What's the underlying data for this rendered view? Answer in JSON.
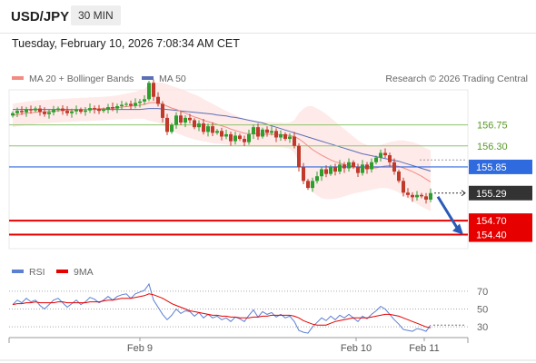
{
  "header": {
    "symbol": "USD/JPY",
    "timeframe": "30 MIN"
  },
  "datetime": "Tuesday, February 10, 2026 7:08:34 AM CET",
  "legend": {
    "ma20": "MA 20 + Bollinger Bands",
    "ma50": "MA 50",
    "rsi": "RSI",
    "rsi_ma": "9MA",
    "copyright": "Research © 2026 Trading Central"
  },
  "colors": {
    "up": "#2e9e2e",
    "down": "#c0392b",
    "ma20": "#f28b82",
    "ma50": "#5b6fb5",
    "band": "#fde3e1",
    "pivot": "#2f6bde",
    "support": "#e60000",
    "resistance": "#8cc66b",
    "current": "#333333",
    "rsi": "#5b7fd1",
    "rsi_ma": "#e60000"
  },
  "chart_data": [
    {
      "type": "candlestick",
      "title": "USD/JPY 30 MIN",
      "x_labels": [
        "Feb 9",
        "Feb 10",
        "Feb 11"
      ],
      "ylim": [
        154.1,
        157.5
      ],
      "levels": [
        {
          "label": "156.75",
          "value": 156.75,
          "kind": "resistance"
        },
        {
          "label": "156.30",
          "value": 156.3,
          "kind": "resistance"
        },
        {
          "label": "155.85",
          "value": 155.85,
          "kind": "pivot"
        },
        {
          "label": "155.29",
          "value": 155.29,
          "kind": "current"
        },
        {
          "label": "154.70",
          "value": 154.7,
          "kind": "support"
        },
        {
          "label": "154.40",
          "value": 154.4,
          "kind": "support"
        }
      ],
      "arrow": {
        "from": 155.29,
        "to": 154.4,
        "direction": "down"
      },
      "close": [
        157.0,
        157.05,
        157.02,
        157.08,
        157.06,
        157.1,
        157.03,
        156.98,
        157.02,
        157.07,
        157.1,
        157.05,
        157.0,
        157.04,
        157.08,
        157.03,
        157.06,
        157.11,
        157.09,
        157.05,
        157.08,
        157.13,
        157.1,
        157.15,
        157.18,
        157.2,
        157.16,
        157.22,
        157.25,
        157.3,
        157.65,
        157.35,
        157.2,
        156.9,
        156.6,
        156.75,
        156.95,
        156.8,
        156.9,
        156.85,
        156.7,
        156.78,
        156.6,
        156.72,
        156.58,
        156.62,
        156.5,
        156.55,
        156.4,
        156.52,
        156.45,
        156.38,
        156.55,
        156.7,
        156.5,
        156.65,
        156.58,
        156.62,
        156.48,
        156.55,
        156.45,
        156.5,
        156.3,
        155.85,
        155.55,
        155.4,
        155.55,
        155.65,
        155.8,
        155.7,
        155.85,
        155.75,
        155.9,
        155.82,
        155.95,
        155.85,
        155.72,
        155.9,
        155.8,
        155.95,
        156.05,
        156.15,
        156.1,
        155.95,
        155.75,
        155.55,
        155.3,
        155.25,
        155.2,
        155.25,
        155.22,
        155.15,
        155.29
      ],
      "ma20": [
        156.95,
        156.97,
        156.98,
        157.0,
        157.01,
        157.02,
        157.03,
        157.03,
        157.04,
        157.05,
        157.05,
        157.06,
        157.06,
        157.07,
        157.07,
        157.08,
        157.08,
        157.09,
        157.09,
        157.1,
        157.1,
        157.11,
        157.11,
        157.12,
        157.13,
        157.14,
        157.15,
        157.16,
        157.17,
        157.19,
        157.22,
        157.23,
        157.22,
        157.19,
        157.15,
        157.11,
        157.08,
        157.04,
        157.0,
        156.96,
        156.92,
        156.89,
        156.85,
        156.82,
        156.79,
        156.76,
        156.73,
        156.7,
        156.66,
        156.63,
        156.6,
        156.57,
        156.56,
        156.56,
        156.55,
        156.55,
        156.55,
        156.55,
        156.54,
        156.54,
        156.53,
        156.52,
        156.5,
        156.45,
        156.38,
        156.3,
        156.22,
        156.16,
        156.1,
        156.05,
        156.0,
        155.96,
        155.93,
        155.9,
        155.88,
        155.86,
        155.84,
        155.83,
        155.82,
        155.82,
        155.83,
        155.85,
        155.87,
        155.88,
        155.88,
        155.86,
        155.83,
        155.79,
        155.75,
        155.7,
        155.65,
        155.59,
        155.53
      ],
      "ma50": [
        157.08,
        157.08,
        157.08,
        157.08,
        157.08,
        157.08,
        157.08,
        157.08,
        157.08,
        157.08,
        157.08,
        157.08,
        157.08,
        157.08,
        157.08,
        157.08,
        157.08,
        157.08,
        157.08,
        157.08,
        157.08,
        157.08,
        157.08,
        157.08,
        157.08,
        157.08,
        157.08,
        157.08,
        157.08,
        157.09,
        157.1,
        157.1,
        157.1,
        157.09,
        157.08,
        157.07,
        157.06,
        157.05,
        157.04,
        157.03,
        157.02,
        157.01,
        157.0,
        156.99,
        156.98,
        156.96,
        156.95,
        156.94,
        156.92,
        156.91,
        156.89,
        156.87,
        156.85,
        156.83,
        156.81,
        156.79,
        156.76,
        156.73,
        156.7,
        156.67,
        156.64,
        156.61,
        156.58,
        156.55,
        156.52,
        156.49,
        156.46,
        156.43,
        156.4,
        156.37,
        156.34,
        156.31,
        156.28,
        156.25,
        156.22,
        156.19,
        156.16,
        156.13,
        156.11,
        156.09,
        156.07,
        156.05,
        156.03,
        156.01,
        155.99,
        155.97,
        155.94,
        155.91,
        155.88,
        155.85,
        155.82,
        155.79,
        155.76
      ],
      "band_upper": [
        157.2,
        157.22,
        157.23,
        157.25,
        157.26,
        157.27,
        157.28,
        157.28,
        157.29,
        157.3,
        157.3,
        157.31,
        157.31,
        157.32,
        157.32,
        157.33,
        157.33,
        157.34,
        157.34,
        157.35,
        157.35,
        157.36,
        157.37,
        157.38,
        157.4,
        157.42,
        157.44,
        157.46,
        157.49,
        157.52,
        157.62,
        157.65,
        157.66,
        157.65,
        157.62,
        157.58,
        157.55,
        157.52,
        157.48,
        157.44,
        157.4,
        157.36,
        157.3,
        157.25,
        157.2,
        157.15,
        157.1,
        157.05,
        157.0,
        156.96,
        156.92,
        156.88,
        156.85,
        156.84,
        156.82,
        156.82,
        156.81,
        156.81,
        156.8,
        156.8,
        156.79,
        156.8,
        156.85,
        157.0,
        157.1,
        157.15,
        157.15,
        157.1,
        157.05,
        156.98,
        156.9,
        156.82,
        156.74,
        156.66,
        156.58,
        156.5,
        156.42,
        156.36,
        156.32,
        156.3,
        156.3,
        156.32,
        156.35,
        156.38,
        156.4,
        156.42,
        156.42,
        156.4,
        156.38,
        156.35,
        156.3,
        156.25,
        156.2
      ],
      "band_lower": [
        156.7,
        156.72,
        156.73,
        156.75,
        156.76,
        156.77,
        156.78,
        156.78,
        156.79,
        156.8,
        156.8,
        156.81,
        156.81,
        156.82,
        156.82,
        156.83,
        156.83,
        156.84,
        156.84,
        156.85,
        156.85,
        156.86,
        156.86,
        156.87,
        156.87,
        156.87,
        156.87,
        156.88,
        156.88,
        156.88,
        156.84,
        156.82,
        156.8,
        156.75,
        156.68,
        156.62,
        156.58,
        156.54,
        156.5,
        156.47,
        156.44,
        156.42,
        156.4,
        156.38,
        156.36,
        156.35,
        156.34,
        156.33,
        156.32,
        156.31,
        156.3,
        156.29,
        156.28,
        156.28,
        156.28,
        156.28,
        156.28,
        156.28,
        156.27,
        156.27,
        156.26,
        156.24,
        156.15,
        155.95,
        155.7,
        155.48,
        155.32,
        155.24,
        155.18,
        155.16,
        155.16,
        155.17,
        155.19,
        155.22,
        155.25,
        155.28,
        155.3,
        155.32,
        155.34,
        155.36,
        155.38,
        155.4,
        155.4,
        155.38,
        155.35,
        155.3,
        155.24,
        155.18,
        155.12,
        155.06,
        155.0,
        154.95,
        154.9
      ]
    },
    {
      "type": "line",
      "title": "RSI",
      "ylim": [
        20,
        80
      ],
      "ticks": [
        "70",
        "50",
        "30"
      ],
      "tick_values": [
        70,
        50,
        30
      ],
      "series": [
        {
          "name": "RSI",
          "values": [
            55,
            60,
            57,
            62,
            58,
            60,
            54,
            50,
            55,
            60,
            62,
            57,
            52,
            56,
            60,
            55,
            58,
            63,
            61,
            57,
            60,
            64,
            60,
            64,
            66,
            67,
            62,
            67,
            69,
            71,
            78,
            60,
            52,
            44,
            38,
            43,
            50,
            45,
            48,
            47,
            42,
            46,
            40,
            44,
            40,
            42,
            38,
            40,
            36,
            41,
            39,
            36,
            43,
            49,
            41,
            47,
            44,
            46,
            41,
            44,
            40,
            42,
            36,
            26,
            24,
            23,
            30,
            35,
            40,
            37,
            42,
            38,
            43,
            40,
            44,
            40,
            36,
            42,
            39,
            44,
            48,
            53,
            50,
            44,
            38,
            33,
            27,
            26,
            25,
            28,
            27,
            25,
            32
          ]
        },
        {
          "name": "9MA",
          "values": [
            55,
            56,
            56,
            57,
            57,
            58,
            57,
            57,
            57,
            57,
            58,
            58,
            57,
            57,
            57,
            57,
            57,
            58,
            58,
            58,
            59,
            60,
            60,
            61,
            62,
            62,
            62,
            63,
            64,
            65,
            67,
            66,
            64,
            62,
            59,
            56,
            54,
            52,
            50,
            48,
            47,
            46,
            45,
            44,
            43,
            43,
            42,
            42,
            41,
            41,
            40,
            40,
            40,
            41,
            41,
            42,
            42,
            43,
            43,
            43,
            43,
            43,
            42,
            40,
            37,
            35,
            33,
            32,
            32,
            32,
            34,
            36,
            37,
            38,
            39,
            40,
            40,
            40,
            40,
            41,
            42,
            43,
            44,
            44,
            43,
            42,
            40,
            38,
            36,
            34,
            32,
            30,
            29
          ]
        }
      ]
    }
  ]
}
